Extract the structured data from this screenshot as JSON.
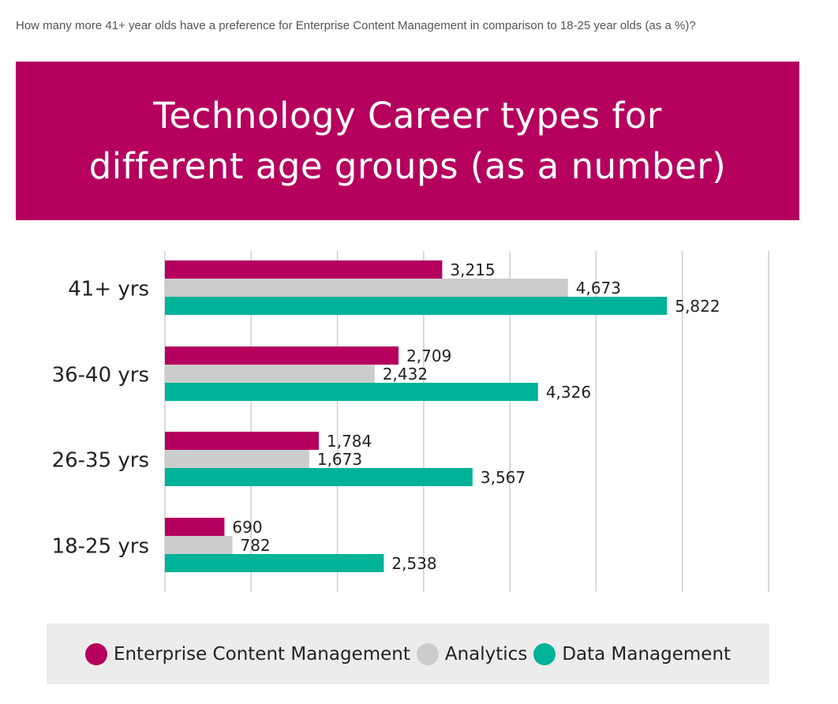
{
  "question": "How many more 41+ year olds have a preference for Enterprise Content Management in comparison to 18-25 year olds (as a %)?",
  "banner_color": "#b5005e",
  "chart_data": {
    "type": "bar",
    "orientation": "horizontal",
    "title_lines": [
      "Technology Career types for",
      "different age groups (as a number)"
    ],
    "categories": [
      "41+ yrs",
      "36-40 yrs",
      "26-35 yrs",
      "18-25 yrs"
    ],
    "series": [
      {
        "name": "Enterprise Content Management",
        "color": "#b5005e",
        "values": [
          3215,
          2709,
          1784,
          690
        ],
        "labels": [
          "3,215",
          "2,709",
          "1,784",
          "690"
        ]
      },
      {
        "name": "Analytics",
        "color": "#cccccc",
        "values": [
          4673,
          2432,
          1673,
          782
        ],
        "labels": [
          "4,673",
          "2,432",
          "1,673",
          "782"
        ]
      },
      {
        "name": "Data Management",
        "color": "#00b398",
        "values": [
          5822,
          4326,
          3567,
          2538
        ],
        "labels": [
          "5,822",
          "4,326",
          "3,567",
          "2,538"
        ]
      }
    ],
    "xlim": [
      0,
      7000
    ],
    "grid": true,
    "legend_position": "bottom"
  }
}
